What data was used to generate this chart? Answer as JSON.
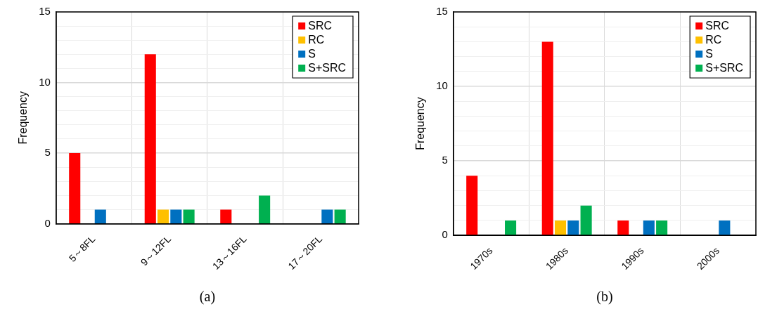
{
  "chart_data": [
    {
      "type": "bar",
      "xlabel": "(a)",
      "ylabel": "Frequency",
      "categories": [
        "5～8FL",
        "9～12FL",
        "13～16FL",
        "17～20FL"
      ],
      "series": [
        {
          "name": "SRC",
          "color": "#ff0000",
          "values": [
            5,
            12,
            1,
            0
          ]
        },
        {
          "name": "RC",
          "color": "#ffc000",
          "values": [
            0,
            1,
            0,
            0
          ]
        },
        {
          "name": "S",
          "color": "#0070c0",
          "values": [
            1,
            1,
            0,
            1
          ]
        },
        {
          "name": "S+SRC",
          "color": "#00b050",
          "values": [
            0,
            1,
            2,
            1
          ]
        }
      ],
      "ylim": [
        0,
        15
      ],
      "yticks": [
        0,
        {
          "value": 1,
          "label": null
        },
        {
          "value": 2,
          "label": null
        },
        {
          "value": 3,
          "label": null
        },
        {
          "value": 4,
          "label": null
        },
        5,
        {
          "value": 6,
          "label": null
        },
        {
          "value": 7,
          "label": null
        },
        {
          "value": 8,
          "label": null
        },
        {
          "value": 9,
          "label": null
        },
        10,
        {
          "value": 11,
          "label": null
        },
        {
          "value": 12,
          "label": null
        },
        {
          "value": 13,
          "label": null
        },
        {
          "value": 14,
          "label": null
        },
        15
      ],
      "grid": true,
      "legend": "top right"
    },
    {
      "type": "bar",
      "xlabel": "(b)",
      "ylabel": "Frequency",
      "categories": [
        "1970s",
        "1980s",
        "1990s",
        "2000s"
      ],
      "series": [
        {
          "name": "SRC",
          "color": "#ff0000",
          "values": [
            4,
            13,
            1,
            0
          ]
        },
        {
          "name": "RC",
          "color": "#ffc000",
          "values": [
            0,
            1,
            0,
            0
          ]
        },
        {
          "name": "S",
          "color": "#0070c0",
          "values": [
            0,
            1,
            1,
            1
          ]
        },
        {
          "name": "S+SRC",
          "color": "#00b050",
          "values": [
            1,
            2,
            1,
            0
          ]
        }
      ],
      "ylim": [
        0,
        15
      ],
      "yticks": [
        0,
        {
          "value": 1,
          "label": null
        },
        {
          "value": 2,
          "label": null
        },
        {
          "value": 3,
          "label": null
        },
        {
          "value": 4,
          "label": null
        },
        5,
        {
          "value": 6,
          "label": null
        },
        {
          "value": 7,
          "label": null
        },
        {
          "value": 8,
          "label": null
        },
        {
          "value": 9,
          "label": null
        },
        10,
        {
          "value": 11,
          "label": null
        },
        {
          "value": 12,
          "label": null
        },
        {
          "value": 13,
          "label": null
        },
        {
          "value": 14,
          "label": null
        },
        15
      ],
      "grid": true,
      "legend": "top right"
    }
  ]
}
